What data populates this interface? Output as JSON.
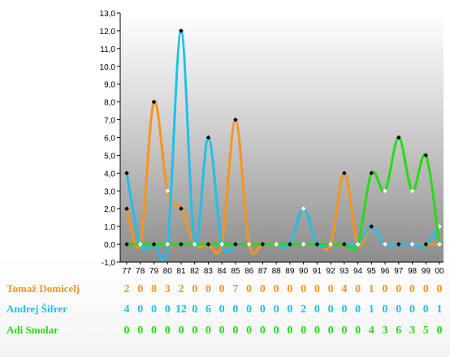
{
  "chart_data": {
    "type": "line",
    "x": [
      "77",
      "78",
      "79",
      "80",
      "81",
      "82",
      "83",
      "84",
      "85",
      "86",
      "87",
      "88",
      "89",
      "90",
      "91",
      "92",
      "93",
      "94",
      "95",
      "96",
      "97",
      "98",
      "99",
      "00"
    ],
    "ylim": [
      -1,
      13
    ],
    "yticks": [
      "-1,0",
      "0,0",
      "1,0",
      "2,0",
      "3,0",
      "4,0",
      "5,0",
      "6,0",
      "7,0",
      "8,0",
      "9,0",
      "10,0",
      "11,0",
      "12,0",
      "13,0"
    ],
    "grid": false,
    "series": [
      {
        "name": "Tomaž Domicelj",
        "color": "#f7941d",
        "values": [
          2,
          0,
          8,
          3,
          2,
          0,
          0,
          0,
          7,
          0,
          0,
          0,
          0,
          0,
          0,
          0,
          4,
          0,
          1,
          0,
          0,
          0,
          0,
          0
        ]
      },
      {
        "name": "Andrej Šifrer",
        "color": "#1fc0e8",
        "values": [
          4,
          0,
          0,
          0,
          12,
          0,
          6,
          0,
          0,
          0,
          0,
          0,
          0,
          2,
          0,
          0,
          0,
          0,
          1,
          0,
          0,
          0,
          0,
          1
        ]
      },
      {
        "name": "Adi Smolar",
        "color": "#22dd11",
        "values": [
          0,
          0,
          0,
          0,
          0,
          0,
          0,
          0,
          0,
          0,
          0,
          0,
          0,
          0,
          0,
          0,
          0,
          0,
          4,
          3,
          6,
          3,
          5,
          0
        ]
      }
    ]
  }
}
